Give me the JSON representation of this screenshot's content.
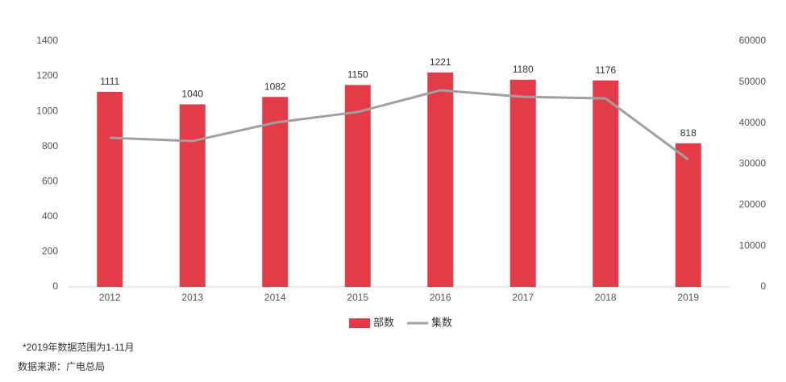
{
  "chart_data": {
    "type": "bar-line",
    "categories": [
      "2012",
      "2013",
      "2014",
      "2015",
      "2016",
      "2017",
      "2018",
      "2019"
    ],
    "series": [
      {
        "name": "部数",
        "type": "bar",
        "color": "#e33c48",
        "values": [
          1111,
          1040,
          1082,
          1150,
          1221,
          1180,
          1176,
          818
        ]
      },
      {
        "name": "集数",
        "type": "line",
        "axis": "y2",
        "color": "#a0a0a0",
        "values": [
          36400,
          35600,
          40100,
          42700,
          48000,
          46400,
          46000,
          31100
        ]
      }
    ],
    "ylim": [
      0,
      1400
    ],
    "yticks": [
      0,
      200,
      400,
      600,
      800,
      1000,
      1200,
      1400
    ],
    "y2lim": [
      0,
      60000
    ],
    "y2ticks": [
      0,
      10000,
      20000,
      30000,
      40000,
      50000,
      60000
    ],
    "grid": false,
    "legend": "bottom",
    "notes": [
      "*2019年数据范围为1-11月",
      "数据来源：广电总局"
    ]
  }
}
